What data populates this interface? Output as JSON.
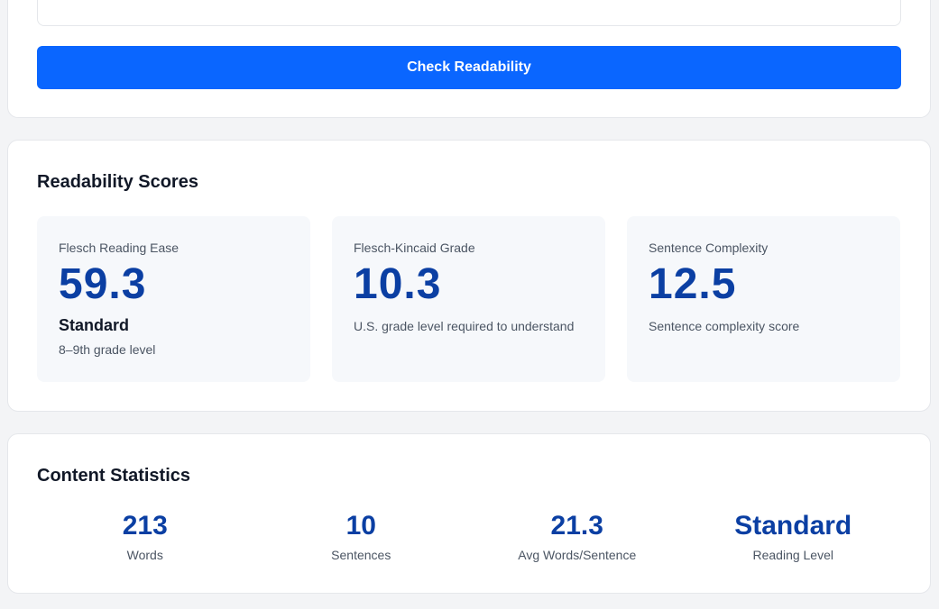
{
  "input_card": {
    "check_button_label": "Check Readability"
  },
  "scores": {
    "title": "Readability Scores",
    "flesch": {
      "label": "Flesch Reading Ease",
      "value": "59.3",
      "level": "Standard",
      "description": "8–9th grade level"
    },
    "fk_grade": {
      "label": "Flesch-Kincaid Grade",
      "value": "10.3",
      "description": "U.S. grade level required to understand"
    },
    "sentence_complexity": {
      "label": "Sentence Complexity",
      "value": "12.5",
      "description": "Sentence complexity score"
    }
  },
  "stats": {
    "title": "Content Statistics",
    "items": [
      {
        "value": "213",
        "label": "Words"
      },
      {
        "value": "10",
        "label": "Sentences"
      },
      {
        "value": "21.3",
        "label": "Avg Words/Sentence"
      },
      {
        "value": "Standard",
        "label": "Reading Level"
      }
    ]
  },
  "colors": {
    "accent": "#0a66ff",
    "score_value": "#0b3fa3",
    "card_bg": "#ffffff",
    "score_box_bg": "#f6f8fb"
  }
}
